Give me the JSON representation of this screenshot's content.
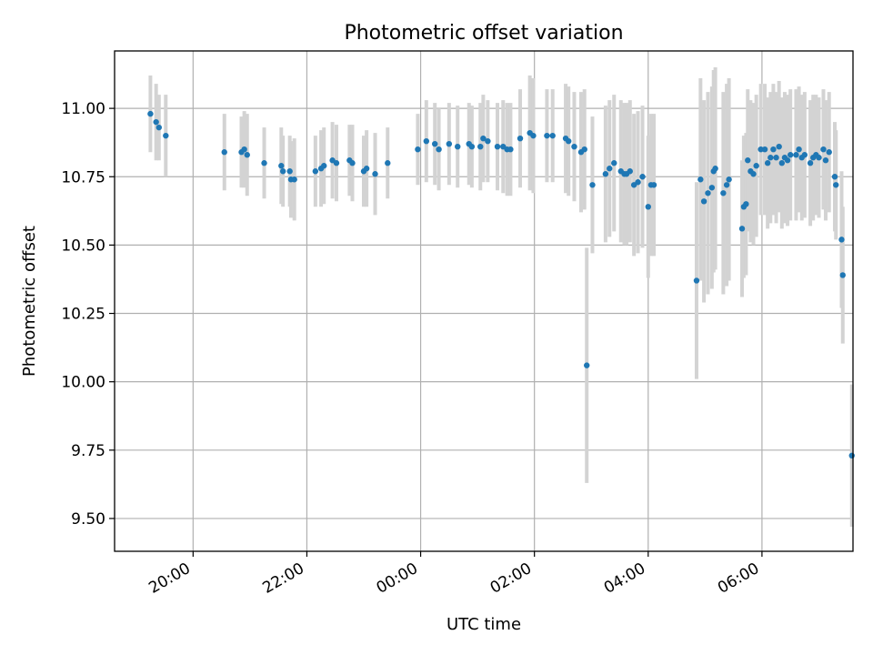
{
  "chart_data": {
    "type": "scatter",
    "title": "Photometric offset variation",
    "xlabel": "UTC time",
    "ylabel": "Photometric offset",
    "x_ticks": [
      "20:00",
      "22:00",
      "00:00",
      "02:00",
      "04:00",
      "06:00"
    ],
    "x_tick_hours": [
      20,
      22,
      24,
      26,
      28,
      30
    ],
    "xlim_hours": [
      18.62,
      31.6
    ],
    "y_ticks": [
      "9.50",
      "9.75",
      "10.00",
      "10.25",
      "10.50",
      "10.75",
      "11.00"
    ],
    "y_tick_values": [
      9.5,
      9.75,
      10.0,
      10.25,
      10.5,
      10.75,
      11.0
    ],
    "ylim": [
      9.38,
      11.21
    ],
    "grid": true,
    "colors": {
      "points": "#1f77b4",
      "error_bars": "#d3d3d3",
      "grid": "#b0b0b0"
    },
    "points": [
      [
        19.25,
        10.98,
        0.14
      ],
      [
        19.35,
        10.95,
        0.14
      ],
      [
        19.4,
        10.93,
        0.12
      ],
      [
        19.52,
        10.9,
        0.15
      ],
      [
        20.55,
        10.84,
        0.14
      ],
      [
        20.85,
        10.84,
        0.13
      ],
      [
        20.9,
        10.85,
        0.14
      ],
      [
        20.95,
        10.83,
        0.15
      ],
      [
        21.25,
        10.8,
        0.13
      ],
      [
        21.55,
        10.79,
        0.14
      ],
      [
        21.58,
        10.77,
        0.13
      ],
      [
        21.7,
        10.77,
        0.13
      ],
      [
        21.72,
        10.74,
        0.14
      ],
      [
        21.78,
        10.74,
        0.15
      ],
      [
        22.15,
        10.77,
        0.13
      ],
      [
        22.25,
        10.78,
        0.14
      ],
      [
        22.3,
        10.79,
        0.14
      ],
      [
        22.45,
        10.81,
        0.14
      ],
      [
        22.52,
        10.8,
        0.14
      ],
      [
        22.75,
        10.81,
        0.13
      ],
      [
        22.8,
        10.8,
        0.14
      ],
      [
        23.0,
        10.77,
        0.13
      ],
      [
        23.05,
        10.78,
        0.14
      ],
      [
        23.2,
        10.76,
        0.15
      ],
      [
        23.42,
        10.8,
        0.13
      ],
      [
        23.95,
        10.85,
        0.13
      ],
      [
        24.1,
        10.88,
        0.15
      ],
      [
        24.25,
        10.87,
        0.15
      ],
      [
        24.32,
        10.85,
        0.15
      ],
      [
        24.5,
        10.87,
        0.15
      ],
      [
        24.65,
        10.86,
        0.15
      ],
      [
        24.85,
        10.87,
        0.15
      ],
      [
        24.9,
        10.86,
        0.15
      ],
      [
        25.05,
        10.86,
        0.16
      ],
      [
        25.1,
        10.89,
        0.16
      ],
      [
        25.18,
        10.88,
        0.15
      ],
      [
        25.35,
        10.86,
        0.16
      ],
      [
        25.45,
        10.86,
        0.17
      ],
      [
        25.52,
        10.85,
        0.17
      ],
      [
        25.58,
        10.85,
        0.17
      ],
      [
        25.75,
        10.89,
        0.18
      ],
      [
        25.92,
        10.91,
        0.21
      ],
      [
        25.98,
        10.9,
        0.21
      ],
      [
        26.22,
        10.9,
        0.17
      ],
      [
        26.32,
        10.9,
        0.17
      ],
      [
        26.55,
        10.89,
        0.2
      ],
      [
        26.6,
        10.88,
        0.2
      ],
      [
        26.7,
        10.86,
        0.2
      ],
      [
        26.82,
        10.84,
        0.22
      ],
      [
        26.88,
        10.85,
        0.22
      ],
      [
        26.92,
        10.06,
        0.43
      ],
      [
        27.02,
        10.72,
        0.25
      ],
      [
        27.25,
        10.76,
        0.25
      ],
      [
        27.32,
        10.78,
        0.25
      ],
      [
        27.4,
        10.8,
        0.25
      ],
      [
        27.52,
        10.77,
        0.26
      ],
      [
        27.58,
        10.76,
        0.26
      ],
      [
        27.62,
        10.76,
        0.26
      ],
      [
        27.68,
        10.77,
        0.26
      ],
      [
        27.75,
        10.72,
        0.26
      ],
      [
        27.82,
        10.73,
        0.26
      ],
      [
        27.9,
        10.75,
        0.26
      ],
      [
        28.0,
        10.64,
        0.26
      ],
      [
        28.05,
        10.72,
        0.26
      ],
      [
        28.1,
        10.72,
        0.26
      ],
      [
        28.85,
        10.37,
        0.36
      ],
      [
        28.92,
        10.74,
        0.37
      ],
      [
        28.98,
        10.66,
        0.37
      ],
      [
        29.05,
        10.69,
        0.37
      ],
      [
        29.12,
        10.71,
        0.37
      ],
      [
        29.15,
        10.77,
        0.37
      ],
      [
        29.18,
        10.78,
        0.37
      ],
      [
        29.32,
        10.69,
        0.37
      ],
      [
        29.38,
        10.72,
        0.37
      ],
      [
        29.42,
        10.74,
        0.37
      ],
      [
        29.65,
        10.56,
        0.25
      ],
      [
        29.68,
        10.64,
        0.26
      ],
      [
        29.72,
        10.65,
        0.26
      ],
      [
        29.75,
        10.81,
        0.26
      ],
      [
        29.8,
        10.77,
        0.26
      ],
      [
        29.85,
        10.76,
        0.26
      ],
      [
        29.9,
        10.79,
        0.26
      ],
      [
        29.98,
        10.85,
        0.24
      ],
      [
        30.05,
        10.85,
        0.24
      ],
      [
        30.1,
        10.8,
        0.24
      ],
      [
        30.15,
        10.82,
        0.24
      ],
      [
        30.2,
        10.85,
        0.24
      ],
      [
        30.25,
        10.82,
        0.24
      ],
      [
        30.3,
        10.86,
        0.24
      ],
      [
        30.35,
        10.8,
        0.24
      ],
      [
        30.4,
        10.82,
        0.24
      ],
      [
        30.45,
        10.81,
        0.24
      ],
      [
        30.5,
        10.83,
        0.24
      ],
      [
        30.6,
        10.83,
        0.24
      ],
      [
        30.65,
        10.85,
        0.23
      ],
      [
        30.7,
        10.82,
        0.23
      ],
      [
        30.75,
        10.83,
        0.23
      ],
      [
        30.85,
        10.8,
        0.23
      ],
      [
        30.9,
        10.82,
        0.23
      ],
      [
        30.95,
        10.83,
        0.22
      ],
      [
        31.0,
        10.82,
        0.22
      ],
      [
        31.08,
        10.85,
        0.22
      ],
      [
        31.12,
        10.81,
        0.22
      ],
      [
        31.18,
        10.84,
        0.22
      ],
      [
        31.28,
        10.75,
        0.2
      ],
      [
        31.3,
        10.72,
        0.2
      ],
      [
        31.4,
        10.52,
        0.25
      ],
      [
        31.42,
        10.39,
        0.25
      ],
      [
        31.58,
        9.73,
        0.26
      ]
    ]
  }
}
